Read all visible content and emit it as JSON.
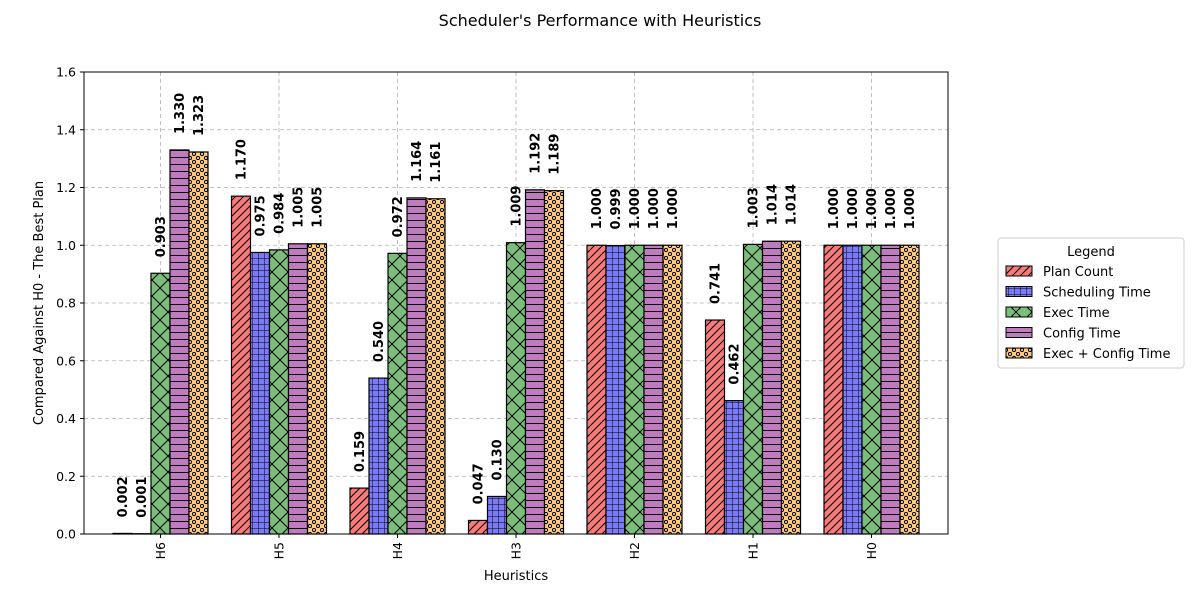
{
  "chart_data": {
    "type": "bar",
    "title": "Scheduler's Performance with Heuristics",
    "xlabel": "Heuristics",
    "ylabel": "Compared Against H0 - The Best Plan",
    "ylim": [
      0,
      1.6
    ],
    "yticks": [
      "0.0",
      "0.2",
      "0.4",
      "0.6",
      "0.8",
      "1.0",
      "1.2",
      "1.4",
      "1.6"
    ],
    "grid": true,
    "legend_title": "Legend",
    "legend_position": "right",
    "categories": [
      "H6",
      "H5",
      "H4",
      "H3",
      "H2",
      "H1",
      "H0"
    ],
    "series": [
      {
        "name": "Plan Count",
        "color": "#f77b7b",
        "hatch": "diagonal",
        "values": [
          0.002,
          1.17,
          0.159,
          0.047,
          1.0,
          0.741,
          1.0
        ]
      },
      {
        "name": "Scheduling Time",
        "color": "#7b7bf7",
        "hatch": "grid",
        "values": [
          0.001,
          0.975,
          0.54,
          0.13,
          0.999,
          0.462,
          1.0
        ]
      },
      {
        "name": "Exec Time",
        "color": "#7bbd7b",
        "hatch": "cross",
        "values": [
          0.903,
          0.984,
          0.972,
          1.009,
          1.0,
          1.003,
          1.0
        ]
      },
      {
        "name": "Config Time",
        "color": "#c07bc0",
        "hatch": "horizontal",
        "values": [
          1.33,
          1.005,
          1.164,
          1.192,
          1.0,
          1.014,
          1.0
        ]
      },
      {
        "name": "Exec + Config Time",
        "color": "#ffcc80",
        "hatch": "dots",
        "values": [
          1.323,
          1.005,
          1.161,
          1.189,
          1.0,
          1.014,
          1.0
        ]
      }
    ]
  }
}
